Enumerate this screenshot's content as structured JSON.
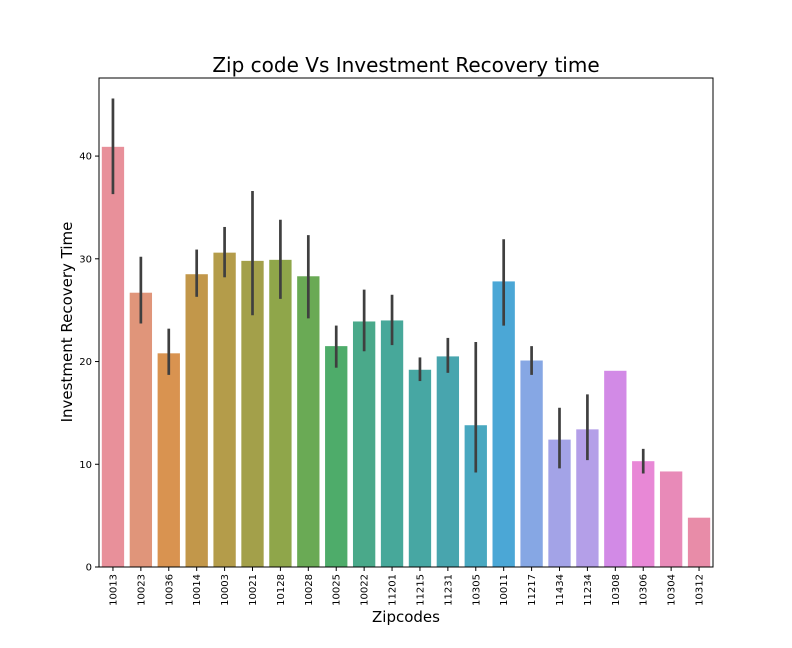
{
  "chart_data": {
    "type": "bar",
    "title": "Zip code Vs Investment Recovery time",
    "xlabel": "Zipcodes",
    "ylabel": "Investment Recovery Time",
    "ylim": [
      0,
      47.6
    ],
    "yticks": [
      0,
      10,
      20,
      30,
      40
    ],
    "grid": false,
    "legend": "none",
    "categories": [
      "10013",
      "10023",
      "10036",
      "10014",
      "10003",
      "10021",
      "10128",
      "10028",
      "10025",
      "10022",
      "11201",
      "11215",
      "11231",
      "10305",
      "10011",
      "11217",
      "11434",
      "11234",
      "10308",
      "10306",
      "10304",
      "10312"
    ],
    "values": [
      40.9,
      26.7,
      20.8,
      28.5,
      30.6,
      29.8,
      29.9,
      28.3,
      21.5,
      23.9,
      24.0,
      19.2,
      20.5,
      13.8,
      27.8,
      20.1,
      12.4,
      13.4,
      19.1,
      10.3,
      9.3,
      4.8
    ],
    "error_low": [
      36.3,
      23.7,
      18.7,
      26.3,
      28.2,
      24.5,
      26.1,
      24.2,
      19.4,
      21.0,
      21.6,
      18.1,
      18.9,
      9.2,
      23.5,
      18.7,
      9.6,
      10.4,
      null,
      9.1,
      null,
      null
    ],
    "error_high": [
      45.6,
      30.2,
      23.2,
      30.9,
      33.1,
      36.6,
      33.8,
      32.3,
      23.5,
      27.0,
      26.5,
      20.4,
      22.3,
      21.9,
      31.9,
      21.5,
      15.5,
      16.8,
      null,
      11.5,
      null,
      null
    ],
    "colors": [
      "#e8909a",
      "#e0957a",
      "#d99350",
      "#c2974a",
      "#b49c4a",
      "#a3a04a",
      "#8fa64a",
      "#6aaa55",
      "#4eac6a",
      "#4aa98a",
      "#47a89a",
      "#47a7a3",
      "#48a5ae",
      "#49a8c0",
      "#4ba7d6",
      "#86a7e4",
      "#a3a3e7",
      "#b49fe8",
      "#d28ae6",
      "#e888d6",
      "#e88ab8",
      "#e88ca8"
    ]
  }
}
